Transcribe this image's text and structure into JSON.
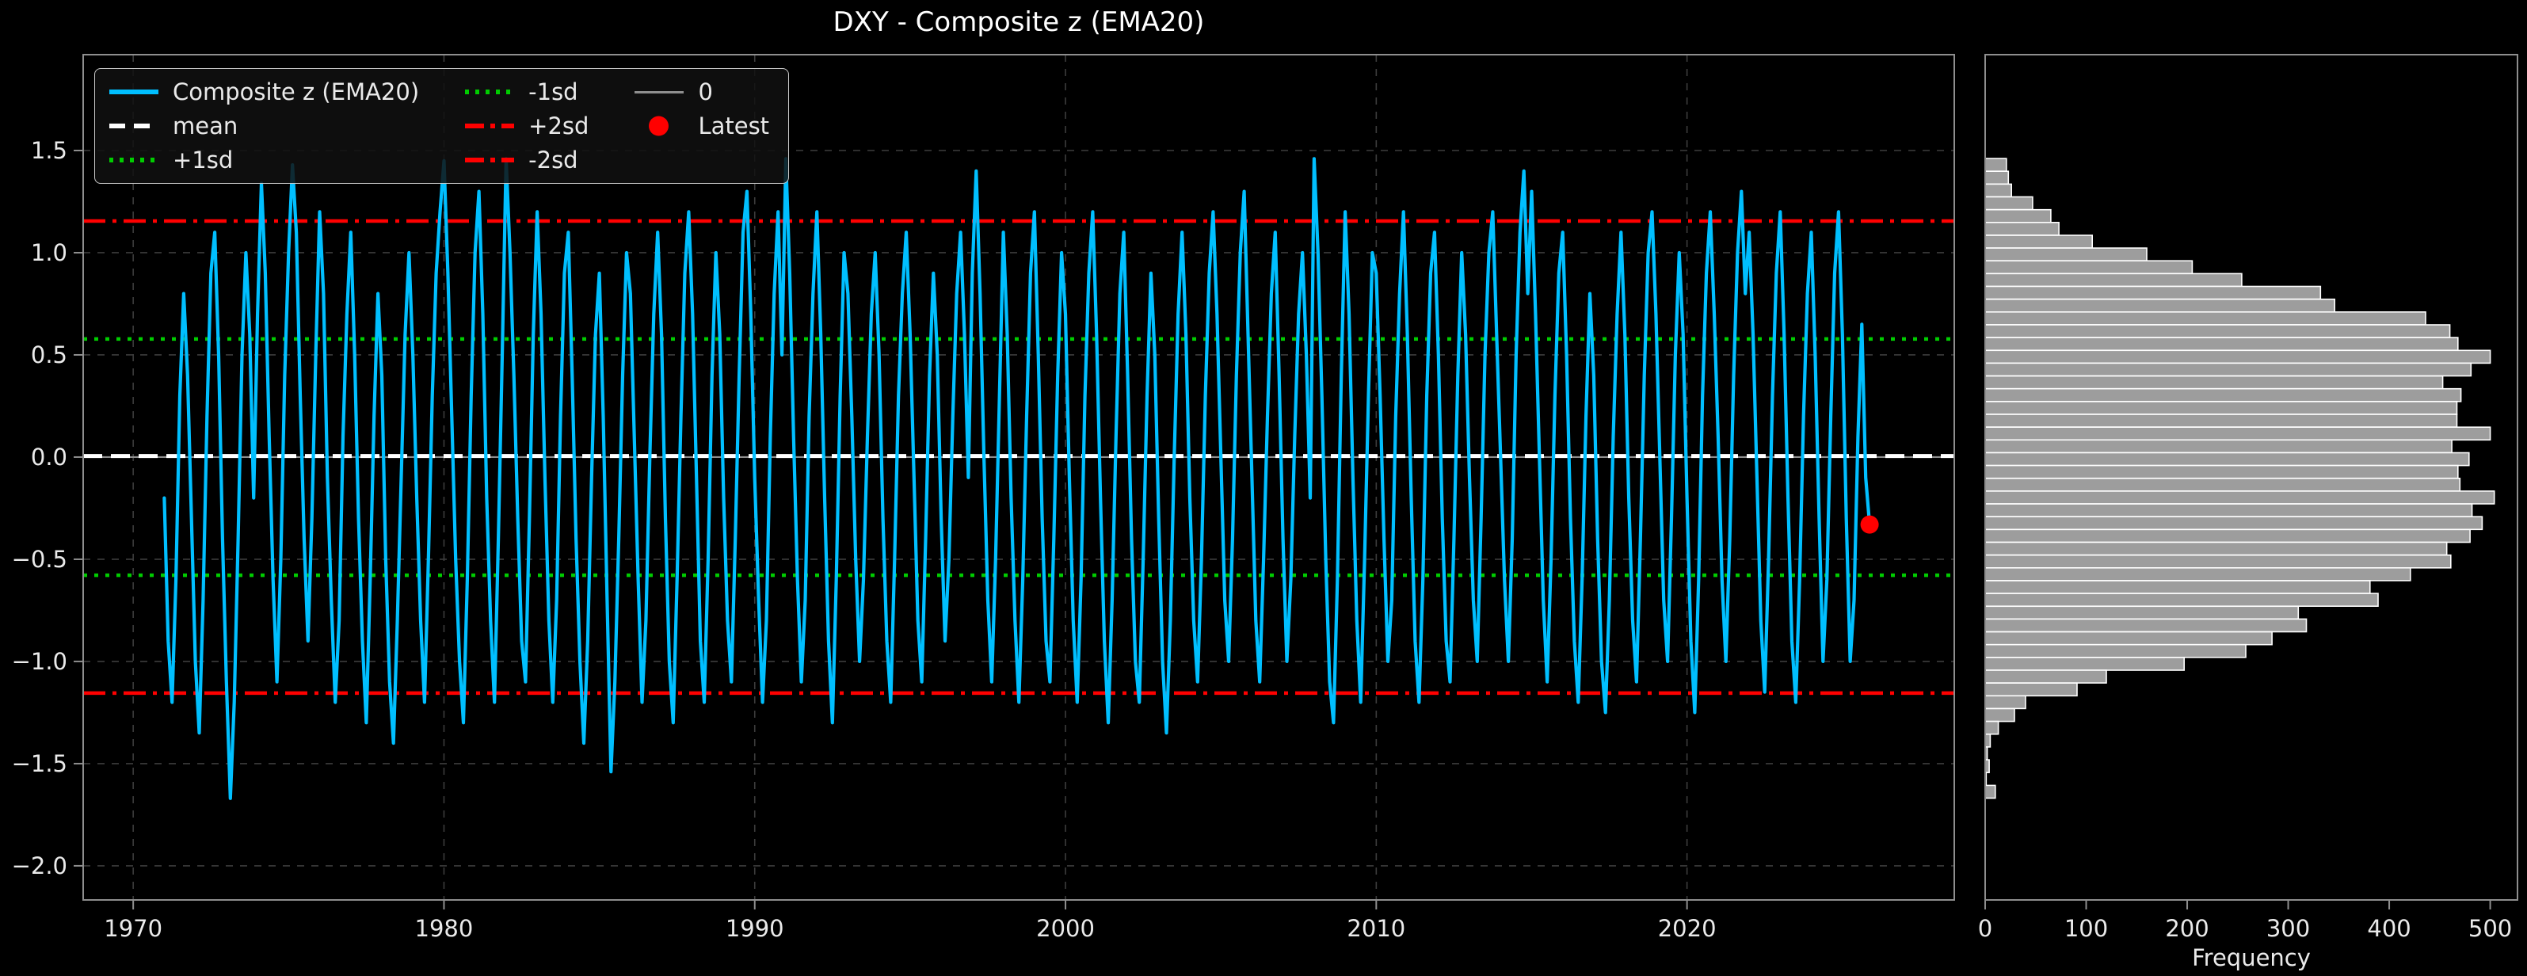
{
  "title": "DXY - Composite z (EMA20)",
  "colors": {
    "background": "#000000",
    "series": "#00BFFF",
    "red": "#FF0000",
    "green": "#00CC00",
    "mean": "#FFFFFF",
    "zero_line": "#8E8E8E",
    "bars": "#9D9D9D",
    "bar_edge": "#FFFFFF",
    "spine": "#8E8E8E",
    "grid": "#3D3D3D",
    "text": "#EAEAEA"
  },
  "legend": {
    "entries": [
      {
        "label": "Composite z (EMA20)",
        "glyph": "solid-cyan"
      },
      {
        "label": "mean",
        "glyph": "dashed-white"
      },
      {
        "label": "+1sd",
        "glyph": "dotted-green"
      },
      {
        "label": "-1sd",
        "glyph": "dotted-green"
      },
      {
        "label": "+2sd",
        "glyph": "dashdot-red"
      },
      {
        "label": "-2sd",
        "glyph": "dashdot-red"
      },
      {
        "label": "0",
        "glyph": "solid-gray"
      },
      {
        "label": "Latest",
        "glyph": "marker-red"
      }
    ]
  },
  "chart_data": {
    "type": "line+histogram",
    "main": {
      "title": "DXY - Composite z (EMA20)",
      "xlim": [
        1968.39,
        2028.6
      ],
      "ylim": [
        -2.167,
        1.969
      ],
      "xticks": [
        {
          "v": 1970,
          "label": "1970"
        },
        {
          "v": 1980,
          "label": "1980"
        },
        {
          "v": 1990,
          "label": "1990"
        },
        {
          "v": 2000,
          "label": "2000"
        },
        {
          "v": 2010,
          "label": "2010"
        },
        {
          "v": 2020,
          "label": "2020"
        }
      ],
      "yticks": [
        {
          "v": 1.5,
          "label": "1.5"
        },
        {
          "v": 1.0,
          "label": "1.0"
        },
        {
          "v": 0.5,
          "label": "0.5"
        },
        {
          "v": 0.0,
          "label": "0.0"
        },
        {
          "v": -0.5,
          "label": "−0.5"
        },
        {
          "v": -1.0,
          "label": "−1.0"
        },
        {
          "v": -1.5,
          "label": "−1.5"
        },
        {
          "v": -2.0,
          "label": "−2.0"
        }
      ],
      "ref_lines": [
        {
          "name": "plus2sd",
          "z": 1.155,
          "style": "dashdot",
          "color_key": "red",
          "width": 4.5
        },
        {
          "name": "plus1sd",
          "z": 0.578,
          "style": "dotted",
          "color_key": "green",
          "width": 4.5
        },
        {
          "name": "zero",
          "z": 0.0,
          "style": "solid",
          "color_key": "zero_line",
          "width": 2.2
        },
        {
          "name": "mean",
          "z": 0.005,
          "style": "dashed",
          "color_key": "mean",
          "width": 5
        },
        {
          "name": "minus1sd",
          "z": -0.578,
          "style": "dotted",
          "color_key": "green",
          "width": 4.5
        },
        {
          "name": "minus2sd",
          "z": -1.155,
          "style": "dashdot",
          "color_key": "red",
          "width": 4.5
        }
      ],
      "series": {
        "name": "Composite z (EMA20)",
        "x_start": 1971.0,
        "x_step": 0.125,
        "values": [
          -0.2,
          -0.9,
          -1.2,
          -0.6,
          0.3,
          0.8,
          0.4,
          -0.3,
          -1.0,
          -1.35,
          -0.7,
          0.2,
          0.9,
          1.1,
          0.5,
          -0.4,
          -1.1,
          -1.67,
          -1.2,
          -0.4,
          0.5,
          1.0,
          0.6,
          -0.2,
          0.7,
          1.34,
          0.9,
          0.1,
          -0.6,
          -1.1,
          -0.5,
          0.4,
          1.0,
          1.43,
          1.1,
          0.3,
          -0.4,
          -0.9,
          -0.3,
          0.5,
          1.2,
          0.8,
          -0.1,
          -0.7,
          -1.2,
          -0.8,
          0.1,
          0.7,
          1.1,
          0.5,
          -0.3,
          -0.9,
          -1.3,
          -0.6,
          0.2,
          0.8,
          0.4,
          -0.5,
          -1.1,
          -1.4,
          -0.8,
          -0.1,
          0.6,
          1.0,
          0.5,
          -0.2,
          -0.8,
          -1.2,
          -0.5,
          0.3,
          0.9,
          1.2,
          1.45,
          0.9,
          0.2,
          -0.5,
          -1.0,
          -1.3,
          -0.6,
          0.3,
          1.0,
          1.3,
          0.7,
          -0.2,
          -0.8,
          -1.2,
          -0.4,
          0.5,
          1.46,
          1.0,
          0.4,
          -0.3,
          -0.9,
          -1.1,
          -0.3,
          0.6,
          1.2,
          0.7,
          -0.1,
          -0.8,
          -1.2,
          -0.7,
          0.2,
          0.9,
          1.1,
          0.4,
          -0.4,
          -1.0,
          -1.4,
          -0.9,
          -0.1,
          0.6,
          0.9,
          0.2,
          -0.7,
          -1.54,
          -1.1,
          -0.4,
          0.4,
          1.0,
          0.8,
          0.1,
          -0.6,
          -1.2,
          -0.8,
          0.0,
          0.7,
          1.1,
          0.6,
          -0.3,
          -1.0,
          -1.3,
          -0.6,
          0.2,
          0.9,
          1.2,
          0.7,
          -0.1,
          -0.9,
          -1.2,
          -0.5,
          0.4,
          1.0,
          0.6,
          -0.2,
          -0.8,
          -1.1,
          -0.4,
          0.4,
          1.1,
          1.3,
          0.7,
          -0.1,
          -0.7,
          -1.2,
          -0.8,
          0.1,
          0.8,
          1.2,
          0.5,
          1.46,
          0.9,
          0.1,
          -0.6,
          -1.1,
          -0.7,
          0.2,
          0.8,
          1.2,
          0.6,
          -0.2,
          -0.9,
          -1.3,
          -0.6,
          0.3,
          1.0,
          0.8,
          0.2,
          -0.5,
          -1.0,
          -0.6,
          0.1,
          0.7,
          1.0,
          0.5,
          -0.3,
          -0.9,
          -1.2,
          -0.5,
          0.3,
          0.8,
          1.1,
          0.6,
          -0.1,
          -0.8,
          -1.1,
          -0.4,
          0.4,
          0.9,
          0.5,
          -0.3,
          -0.9,
          -0.5,
          0.2,
          0.8,
          1.1,
          0.6,
          -0.1,
          0.9,
          1.4,
          0.8,
          0.0,
          -0.7,
          -1.1,
          -0.5,
          0.3,
          1.1,
          0.6,
          -0.2,
          -0.8,
          -1.2,
          -0.6,
          0.2,
          0.9,
          1.2,
          0.5,
          -0.3,
          -0.9,
          -1.1,
          -0.4,
          0.4,
          1.0,
          0.7,
          -0.1,
          -0.8,
          -1.2,
          -0.6,
          0.3,
          0.9,
          1.2,
          0.6,
          -0.2,
          -0.9,
          -1.3,
          -0.7,
          0.1,
          0.8,
          1.1,
          0.4,
          -0.4,
          -1.0,
          -1.2,
          -0.5,
          0.3,
          0.9,
          0.5,
          -0.3,
          -1.0,
          -1.35,
          -0.8,
          0.0,
          0.7,
          1.1,
          0.6,
          -0.2,
          -0.8,
          -1.1,
          -0.5,
          0.3,
          0.9,
          1.2,
          0.7,
          0.0,
          -0.7,
          -1.0,
          -0.4,
          0.4,
          1.0,
          1.3,
          0.6,
          -0.1,
          -0.8,
          -1.1,
          -0.5,
          0.2,
          0.8,
          1.1,
          0.4,
          -0.4,
          -1.0,
          -0.6,
          0.1,
          0.7,
          1.0,
          0.5,
          -0.2,
          1.46,
          1.0,
          0.3,
          -0.5,
          -1.1,
          -1.3,
          -0.6,
          0.4,
          1.2,
          0.7,
          -0.1,
          -0.8,
          -1.2,
          -0.5,
          0.3,
          1.0,
          0.9,
          0.3,
          -0.4,
          -1.0,
          -0.7,
          0.2,
          0.8,
          1.2,
          0.6,
          -0.2,
          -0.9,
          -1.2,
          -0.6,
          0.3,
          0.9,
          1.1,
          0.5,
          -0.3,
          -0.9,
          -1.1,
          -0.4,
          0.4,
          1.0,
          0.6,
          -0.1,
          -0.7,
          -1.0,
          -0.3,
          0.5,
          1.0,
          1.2,
          0.6,
          0.0,
          -0.6,
          -1.0,
          -0.4,
          0.5,
          1.1,
          1.4,
          0.8,
          1.3,
          0.7,
          0.0,
          -0.7,
          -1.1,
          -0.5,
          0.3,
          0.9,
          1.1,
          0.5,
          -0.3,
          -0.9,
          -1.2,
          -0.6,
          0.2,
          0.8,
          0.4,
          -0.4,
          -1.0,
          -1.25,
          -0.7,
          0.1,
          0.7,
          1.1,
          0.6,
          -0.2,
          -0.8,
          -1.1,
          -0.4,
          0.4,
          1.0,
          1.2,
          0.7,
          0.0,
          -0.7,
          -1.0,
          -0.3,
          0.5,
          1.0,
          0.6,
          -0.2,
          -0.9,
          -1.25,
          -0.6,
          0.3,
          0.9,
          1.2,
          0.7,
          0.1,
          -0.6,
          -1.0,
          -0.4,
          0.4,
          1.0,
          1.3,
          0.8,
          1.1,
          0.6,
          -0.1,
          -0.8,
          -1.15,
          -0.5,
          0.3,
          0.9,
          1.2,
          0.6,
          -0.2,
          -0.9,
          -1.2,
          -0.6,
          0.2,
          0.8,
          1.1,
          0.5,
          -0.3,
          -1.0,
          -0.6,
          0.2,
          0.9,
          1.2,
          0.6,
          -0.3,
          -1.0,
          -0.7,
          0.1,
          0.65,
          -0.1,
          -0.33
        ]
      },
      "latest_point": {
        "x": 2025.875,
        "z": -0.33,
        "label": "Latest"
      }
    },
    "histogram": {
      "orientation": "horizontal",
      "xlabel": "Frequency",
      "xlim": [
        0,
        527
      ],
      "xticks": [
        {
          "v": 0,
          "label": "0"
        },
        {
          "v": 100,
          "label": "100"
        },
        {
          "v": 200,
          "label": "200"
        },
        {
          "v": 300,
          "label": "300"
        },
        {
          "v": 400,
          "label": "400"
        },
        {
          "v": 500,
          "label": "500"
        }
      ],
      "bin_z_top": 1.461,
      "bin_dz": 0.0626,
      "frequencies": [
        21,
        23,
        26,
        47,
        65,
        73,
        106,
        160,
        205,
        254,
        332,
        346,
        436,
        460,
        468,
        500,
        481,
        453,
        471,
        467,
        467,
        500,
        462,
        479,
        468,
        470,
        504,
        482,
        492,
        480,
        457,
        461,
        421,
        381,
        389,
        310,
        318,
        284,
        258,
        197,
        120,
        91,
        40,
        29,
        13,
        5,
        2,
        4,
        1,
        10
      ]
    }
  },
  "labels": {
    "frequency_axis": "Frequency"
  }
}
